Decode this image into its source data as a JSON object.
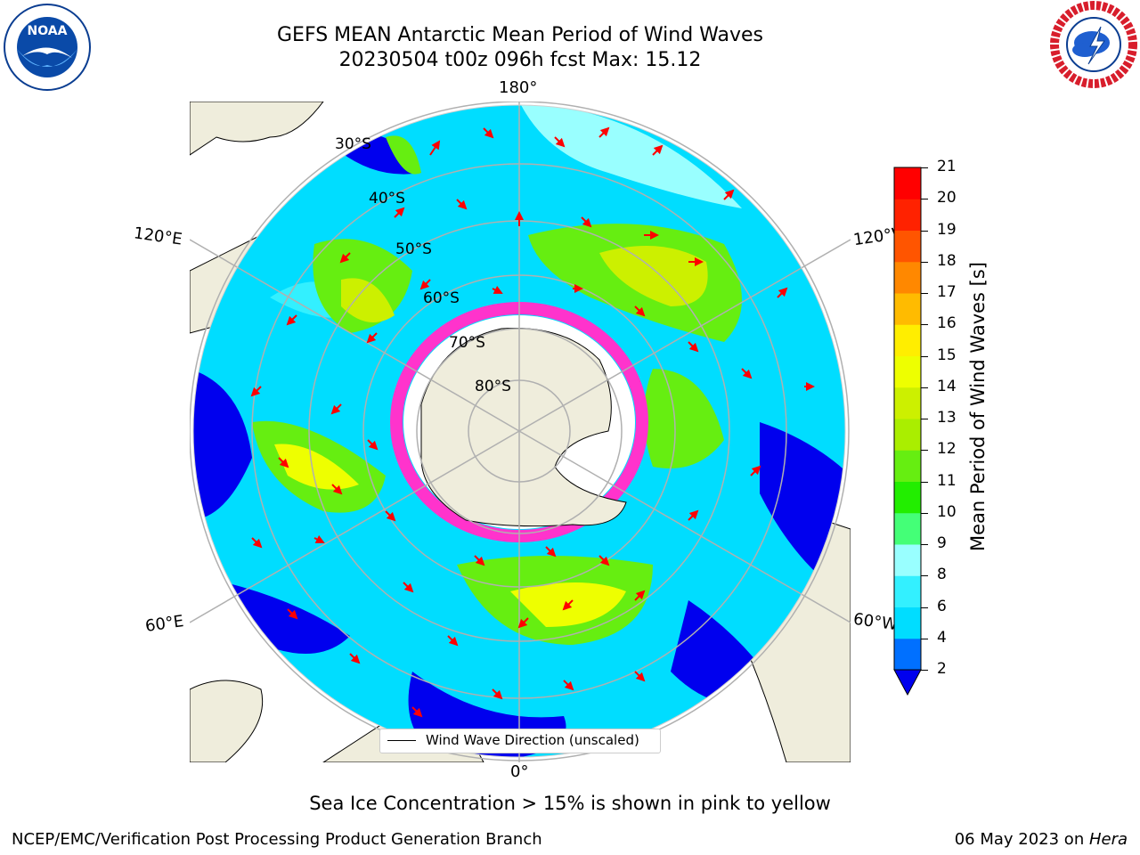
{
  "title": {
    "line1": "GEFS MEAN Antarctic Mean Period of Wind Waves",
    "line2": "20230504 t00z 096h fcst   Max: 15.12"
  },
  "logos": {
    "left": "noaa-logo",
    "right": "national-weather-service-logo"
  },
  "map": {
    "projection": "south-polar-stereographic",
    "longitude_labels": [
      "180°",
      "120°E",
      "120°W",
      "60°E",
      "60°W",
      "0°"
    ],
    "latitude_labels": [
      "30°S",
      "40°S",
      "50°S",
      "60°S",
      "70°S",
      "80°S"
    ],
    "arrow_color": "#ff0000",
    "land_color": "#efeddc",
    "sea_ice_colors": [
      "#ff33cc",
      "#ffffff",
      "#ffd700"
    ]
  },
  "legend": {
    "label": "Wind Wave Direction (unscaled)"
  },
  "colorbar": {
    "label": "Mean Period of Wind Waves [s]",
    "ticks": [
      "2",
      "4",
      "6",
      "8",
      "9",
      "10",
      "11",
      "12",
      "13",
      "14",
      "15",
      "16",
      "17",
      "18",
      "19",
      "20",
      "21"
    ],
    "colors": [
      "#0000ee",
      "#0070ff",
      "#00ddff",
      "#33f0ff",
      "#99ffff",
      "#44ff77",
      "#22ee00",
      "#66ee11",
      "#aaee00",
      "#ccf000",
      "#eeff00",
      "#ffee00",
      "#ffbb00",
      "#ff8800",
      "#ff5500",
      "#ff2200",
      "#ff0000"
    ]
  },
  "notes": {
    "sea_ice": "Sea Ice Concentration > 15% is shown in pink to yellow"
  },
  "credits": {
    "left": "NCEP/EMC/Verification Post Processing Product Generation Branch",
    "right_date": "06 May 2023 on ",
    "right_host": "Hera"
  }
}
